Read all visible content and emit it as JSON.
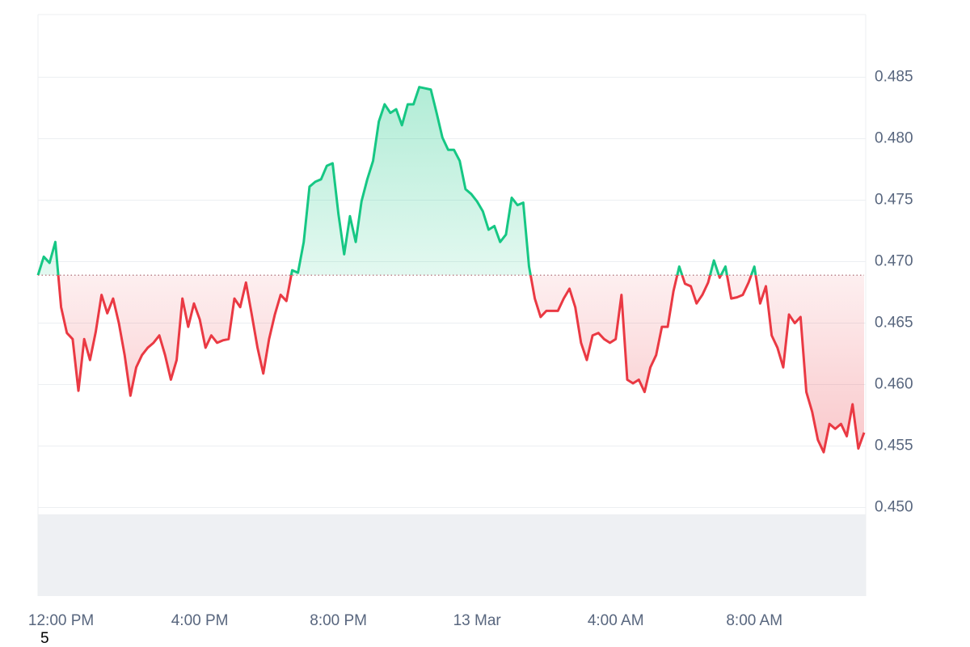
{
  "chart_data": {
    "type": "line",
    "values": [
      0.4689,
      0.4704,
      0.4699,
      0.4716,
      0.4663,
      0.4642,
      0.4637,
      0.4595,
      0.4637,
      0.462,
      0.4643,
      0.4673,
      0.4658,
      0.467,
      0.465,
      0.4624,
      0.4591,
      0.4614,
      0.4624,
      0.463,
      0.4634,
      0.464,
      0.4624,
      0.4604,
      0.462,
      0.467,
      0.4647,
      0.4666,
      0.4653,
      0.463,
      0.464,
      0.4634,
      0.4636,
      0.4637,
      0.467,
      0.4663,
      0.4683,
      0.4657,
      0.463,
      0.4609,
      0.4637,
      0.4657,
      0.4673,
      0.4668,
      0.4693,
      0.4691,
      0.4716,
      0.4761,
      0.4765,
      0.4767,
      0.4778,
      0.478,
      0.4739,
      0.4706,
      0.4737,
      0.4716,
      0.4749,
      0.4767,
      0.4782,
      0.4814,
      0.4828,
      0.4821,
      0.4824,
      0.4811,
      0.4828,
      0.4828,
      0.4842,
      0.4841,
      0.484,
      0.4821,
      0.4801,
      0.4791,
      0.4791,
      0.4782,
      0.4759,
      0.4755,
      0.4749,
      0.4741,
      0.4726,
      0.4729,
      0.4716,
      0.4722,
      0.4752,
      0.4746,
      0.4748,
      0.4696,
      0.467,
      0.4655,
      0.466,
      0.466,
      0.466,
      0.467,
      0.4678,
      0.4663,
      0.4634,
      0.462,
      0.464,
      0.4642,
      0.4637,
      0.4634,
      0.4637,
      0.4673,
      0.4604,
      0.4601,
      0.4604,
      0.4594,
      0.4614,
      0.4624,
      0.4647,
      0.4647,
      0.4676,
      0.4696,
      0.4682,
      0.468,
      0.4666,
      0.4673,
      0.4683,
      0.4701,
      0.4687,
      0.4696,
      0.467,
      0.4671,
      0.4673,
      0.4683,
      0.4696,
      0.4666,
      0.468,
      0.464,
      0.463,
      0.4614,
      0.4657,
      0.465,
      0.4655,
      0.4594,
      0.4578,
      0.4555,
      0.4545,
      0.4568,
      0.4564,
      0.4568,
      0.4558,
      0.4584,
      0.4548,
      0.4561
    ],
    "baseline": 0.4689,
    "color_up": "#16c784",
    "color_down": "#ea3943",
    "xlim": [
      0,
      143
    ],
    "xticks": [
      {
        "value": 4,
        "label": "12:00 PM"
      },
      {
        "value": 28,
        "label": "4:00 PM"
      },
      {
        "value": 52,
        "label": "8:00 PM"
      },
      {
        "value": 76,
        "label": "13 Mar"
      },
      {
        "value": 100,
        "label": "4:00 AM"
      },
      {
        "value": 124,
        "label": "8:00 AM"
      }
    ],
    "ylim": [
      0.4428,
      0.4901
    ],
    "yticks": [
      {
        "value": 0.45,
        "label": "0.450"
      },
      0.455,
      {
        "value": 0.46,
        "label": "0.460"
      },
      0.465,
      {
        "value": 0.47,
        "label": "0.470"
      },
      0.475,
      {
        "value": 0.48,
        "label": "0.480"
      },
      0.485
    ],
    "grid": true,
    "corner_label": "5"
  }
}
